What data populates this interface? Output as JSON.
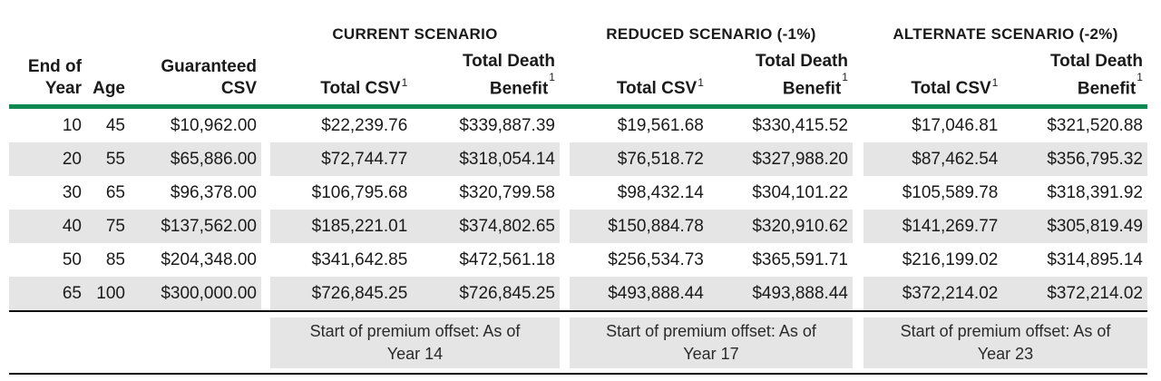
{
  "headers": {
    "end_of": "End of",
    "year": "Year",
    "age": "Age",
    "guaranteed": "Guaranteed",
    "csv": "CSV",
    "total_csv": "Total CSV",
    "total_death": "Total Death",
    "benefit": "Benefit",
    "footnote_marker": "1"
  },
  "scenarios": [
    {
      "title": "CURRENT SCENARIO",
      "offset_label": "Start of premium offset: As of",
      "offset_year": "Year 14"
    },
    {
      "title": "REDUCED SCENARIO (-1%)",
      "offset_label": "Start of premium offset: As of",
      "offset_year": "Year 17"
    },
    {
      "title": "ALTERNATE SCENARIO (-2%)",
      "offset_label": "Start of premium offset: As of",
      "offset_year": "Year 23"
    }
  ],
  "rows": [
    {
      "year": "10",
      "age": "45",
      "guaranteed_csv": "$10,962.00",
      "current_csv": "$22,239.76",
      "current_db": "$339,887.39",
      "reduced_csv": "$19,561.68",
      "reduced_db": "$330,415.52",
      "alternate_csv": "$17,046.81",
      "alternate_db": "$321,520.88"
    },
    {
      "year": "20",
      "age": "55",
      "guaranteed_csv": "$65,886.00",
      "current_csv": "$72,744.77",
      "current_db": "$318,054.14",
      "reduced_csv": "$76,518.72",
      "reduced_db": "$327,988.20",
      "alternate_csv": "$87,462.54",
      "alternate_db": "$356,795.32"
    },
    {
      "year": "30",
      "age": "65",
      "guaranteed_csv": "$96,378.00",
      "current_csv": "$106,795.68",
      "current_db": "$320,799.58",
      "reduced_csv": "$98,432.14",
      "reduced_db": "$304,101.22",
      "alternate_csv": "$105,589.78",
      "alternate_db": "$318,391.92"
    },
    {
      "year": "40",
      "age": "75",
      "guaranteed_csv": "$137,562.00",
      "current_csv": "$185,221.01",
      "current_db": "$374,802.65",
      "reduced_csv": "$150,884.78",
      "reduced_db": "$320,910.62",
      "alternate_csv": "$141,269.77",
      "alternate_db": "$305,819.49"
    },
    {
      "year": "50",
      "age": "85",
      "guaranteed_csv": "$204,348.00",
      "current_csv": "$341,642.85",
      "current_db": "$472,561.18",
      "reduced_csv": "$256,534.73",
      "reduced_db": "$365,591.71",
      "alternate_csv": "$216,199.02",
      "alternate_db": "$314,895.14"
    },
    {
      "year": "65",
      "age": "100",
      "guaranteed_csv": "$300,000.00",
      "current_csv": "$726,845.25",
      "current_db": "$726,845.25",
      "reduced_csv": "$493,888.44",
      "reduced_db": "$493,888.44",
      "alternate_csv": "$372,214.02",
      "alternate_db": "$372,214.02"
    }
  ],
  "colors": {
    "accent_green": "#0e8a50",
    "row_stripe": "#e5e5e5",
    "rule": "#0d0d0d"
  }
}
